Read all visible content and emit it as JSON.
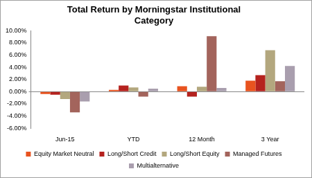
{
  "chart_data": {
    "type": "bar",
    "title": "Total Return by Morningstar Institutional Category",
    "categories": [
      "Jun-15",
      "YTD",
      "12 Month",
      "3 Year"
    ],
    "series": [
      {
        "name": "Equity Market Neutral",
        "color": "#e8531f",
        "values": [
          -0.4,
          0.3,
          0.9,
          1.8
        ]
      },
      {
        "name": "Long/Short Credit",
        "color": "#b5221e",
        "values": [
          -0.5,
          1.0,
          -0.8,
          2.7
        ]
      },
      {
        "name": "Long/Short Equity",
        "color": "#b3a77e",
        "values": [
          -1.2,
          0.7,
          0.8,
          6.8
        ]
      },
      {
        "name": "Managed Futures",
        "color": "#a3645c",
        "values": [
          -3.4,
          -0.8,
          9.1,
          1.7
        ]
      },
      {
        "name": "Multialternative",
        "color": "#a99eae",
        "values": [
          -1.6,
          0.5,
          0.6,
          4.2
        ]
      }
    ],
    "ylim": [
      -6,
      10
    ],
    "yticks": [
      {
        "value": -6,
        "label": "-6.00%"
      },
      {
        "value": -4,
        "label": "-4.00%"
      },
      {
        "value": -2,
        "label": "-2.00%"
      },
      {
        "value": 0,
        "label": "0.00%"
      },
      {
        "value": 2,
        "label": "2.00%"
      },
      {
        "value": 4,
        "label": "4.00%"
      },
      {
        "value": 6,
        "label": "6.00%"
      },
      {
        "value": 8,
        "label": "8.00%"
      },
      {
        "value": 10,
        "label": "10.00%"
      }
    ],
    "grid": false,
    "legend": "bottom"
  }
}
